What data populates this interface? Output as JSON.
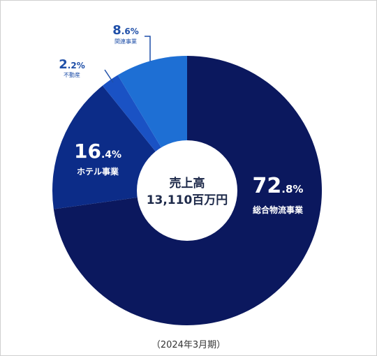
{
  "chart_data": {
    "type": "pie",
    "style": "donut",
    "center": {
      "line1": "売上高",
      "line2": "13,110百万円"
    },
    "footer": "（2024年3月期）",
    "slices": [
      {
        "name": "総合物流事業",
        "value": 72.8,
        "int": "72",
        "dec": ".8",
        "pct": "%",
        "color": "#0b185e",
        "label": "inside"
      },
      {
        "name": "ホテル事業",
        "value": 16.4,
        "int": "16",
        "dec": ".4",
        "pct": "%",
        "color": "#0c2c88",
        "label": "inside"
      },
      {
        "name": "不動産",
        "value": 2.2,
        "int": "2",
        "dec": ".2",
        "pct": "%",
        "color": "#1a52c4",
        "label": "outside"
      },
      {
        "name": "関連事業",
        "value": 8.6,
        "int": "8",
        "dec": ".6",
        "pct": "%",
        "color": "#1e6fd4",
        "label": "outside"
      }
    ]
  }
}
